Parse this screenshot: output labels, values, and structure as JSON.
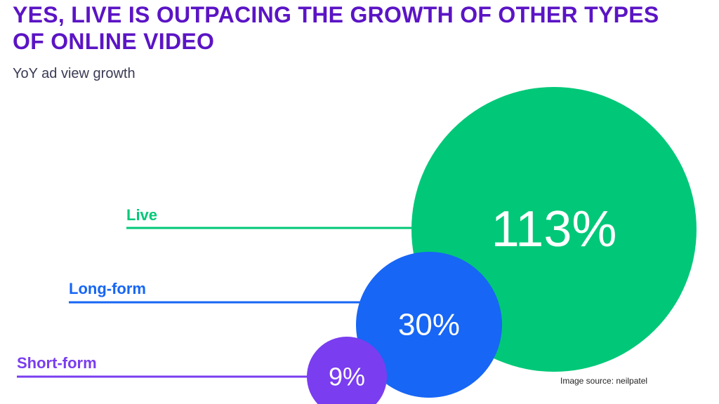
{
  "chart_data": {
    "type": "bubble",
    "title": "YES, LIVE IS OUTPACING THE GROWTH OF OTHER TYPES OF ONLINE VIDEO",
    "subtitle": "YoY ad view growth",
    "series": [
      {
        "name": "Live",
        "value": 113,
        "value_label": "113%",
        "color": "#00c878"
      },
      {
        "name": "Long-form",
        "value": 30,
        "value_label": "30%",
        "color": "#1766f5"
      },
      {
        "name": "Short-form",
        "value": 9,
        "value_label": "9%",
        "color": "#7a3df0"
      }
    ]
  },
  "footer": {
    "source": "Image source: neilpatel"
  }
}
